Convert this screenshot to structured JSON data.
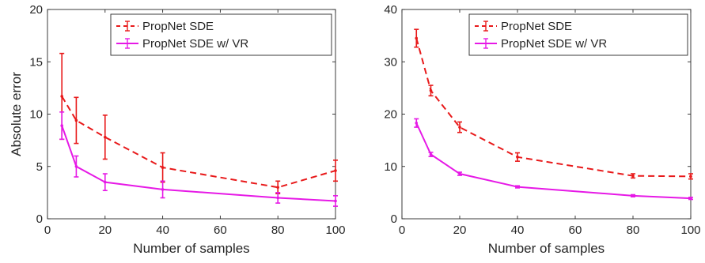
{
  "chart_data": [
    {
      "type": "line",
      "title": "",
      "xlabel": "Number of samples",
      "ylabel": "Absolute error",
      "xlim": [
        0,
        100
      ],
      "ylim": [
        0,
        20
      ],
      "xticks": [
        0,
        20,
        40,
        60,
        80,
        100
      ],
      "yticks": [
        0,
        5,
        10,
        15,
        20
      ],
      "grid": false,
      "legend_position": "top-right",
      "series": [
        {
          "name": "PropNet SDE",
          "color": "#e8191a",
          "style": "dashed",
          "x": [
            5,
            10,
            20,
            40,
            80,
            100
          ],
          "y": [
            11.7,
            9.4,
            7.8,
            4.9,
            3.0,
            4.6
          ],
          "error": [
            4.1,
            2.2,
            2.1,
            1.4,
            0.6,
            1.0
          ]
        },
        {
          "name": "PropNet SDE w/ VR",
          "color": "#e619e6",
          "style": "solid",
          "x": [
            5,
            10,
            20,
            40,
            80,
            100
          ],
          "y": [
            8.9,
            5.0,
            3.5,
            2.8,
            2.0,
            1.7
          ],
          "error": [
            1.3,
            1.0,
            0.8,
            0.8,
            0.5,
            0.5
          ]
        }
      ]
    },
    {
      "type": "line",
      "title": "",
      "xlabel": "Number of samples",
      "ylabel": "",
      "xlim": [
        0,
        100
      ],
      "ylim": [
        0,
        40
      ],
      "xticks": [
        0,
        20,
        40,
        60,
        80,
        100
      ],
      "yticks": [
        0,
        10,
        20,
        30,
        40
      ],
      "grid": false,
      "legend_position": "top-right",
      "series": [
        {
          "name": "PropNet SDE",
          "color": "#e8191a",
          "style": "dashed",
          "x": [
            5,
            10,
            20,
            40,
            80,
            100
          ],
          "y": [
            34.5,
            24.5,
            17.5,
            11.8,
            8.2,
            8.1
          ],
          "error": [
            1.7,
            1.0,
            1.0,
            0.8,
            0.4,
            0.5
          ]
        },
        {
          "name": "PropNet SDE w/ VR",
          "color": "#e619e6",
          "style": "solid",
          "x": [
            5,
            10,
            20,
            40,
            80,
            100
          ],
          "y": [
            18.3,
            12.3,
            8.6,
            6.1,
            4.4,
            3.9
          ],
          "error": [
            0.8,
            0.4,
            0.3,
            0.2,
            0.2,
            0.2
          ]
        }
      ]
    }
  ]
}
